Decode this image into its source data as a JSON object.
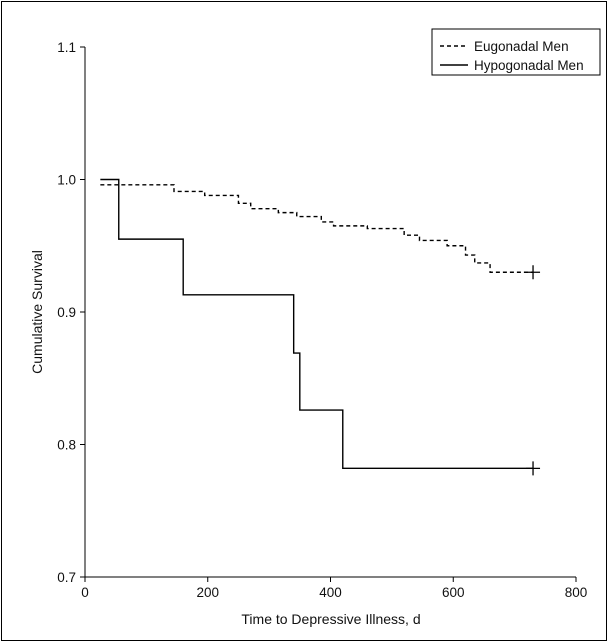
{
  "chart_data": {
    "type": "line",
    "xlabel": "Time to Depressive Illness, d",
    "ylabel": "Cumulative Survival",
    "xlim": [
      0,
      800
    ],
    "ylim": [
      0.7,
      1.1
    ],
    "x_ticks": [
      0,
      200,
      400,
      600,
      800
    ],
    "y_ticks": [
      0.7,
      0.8,
      0.9,
      1.0,
      1.1
    ],
    "x_tick_labels": [
      "0",
      "200",
      "400",
      "600",
      "800"
    ],
    "y_tick_labels": [
      "0.7",
      "0.8",
      "0.9",
      "1.0",
      "1.1"
    ],
    "grid": false,
    "legend_position": "top-right",
    "series": [
      {
        "name": "Eugonadal Men",
        "style": "dashed",
        "step": true,
        "points": [
          [
            25,
            0.996
          ],
          [
            145,
            0.991
          ],
          [
            195,
            0.988
          ],
          [
            250,
            0.982
          ],
          [
            270,
            0.978
          ],
          [
            315,
            0.975
          ],
          [
            345,
            0.972
          ],
          [
            385,
            0.968
          ],
          [
            405,
            0.965
          ],
          [
            460,
            0.963
          ],
          [
            520,
            0.958
          ],
          [
            545,
            0.954
          ],
          [
            590,
            0.95
          ],
          [
            620,
            0.943
          ],
          [
            635,
            0.937
          ],
          [
            660,
            0.93
          ],
          [
            730,
            0.93
          ]
        ],
        "censored": [
          [
            730,
            0.93
          ]
        ]
      },
      {
        "name": "Hypogonadal Men",
        "style": "solid",
        "step": true,
        "points": [
          [
            25,
            1.0
          ],
          [
            55,
            0.955
          ],
          [
            160,
            0.913
          ],
          [
            340,
            0.869
          ],
          [
            350,
            0.826
          ],
          [
            420,
            0.782
          ],
          [
            730,
            0.782
          ]
        ],
        "censored": [
          [
            730,
            0.782
          ]
        ]
      }
    ]
  }
}
